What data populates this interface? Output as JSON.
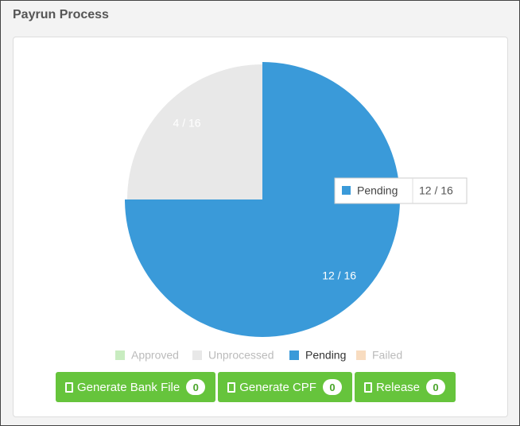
{
  "header": {
    "title": "Payrun Process"
  },
  "chart_data": {
    "type": "pie",
    "categories": [
      "Approved",
      "Unprocessed",
      "Pending",
      "Failed"
    ],
    "values": [
      0,
      4,
      12,
      0
    ],
    "value_labels": [
      null,
      "4 / 16",
      "12 / 16",
      null
    ],
    "colors": [
      "#c8ecc0",
      "#e8e8e8",
      "#3a9ad9",
      "#f8dcc0"
    ],
    "legend": "bottom"
  },
  "buttons": [
    {
      "label": "Generate Bank File",
      "count": 0
    },
    {
      "label": "Generate CPF",
      "count": 0
    },
    {
      "label": "Release",
      "count": 0
    }
  ]
}
